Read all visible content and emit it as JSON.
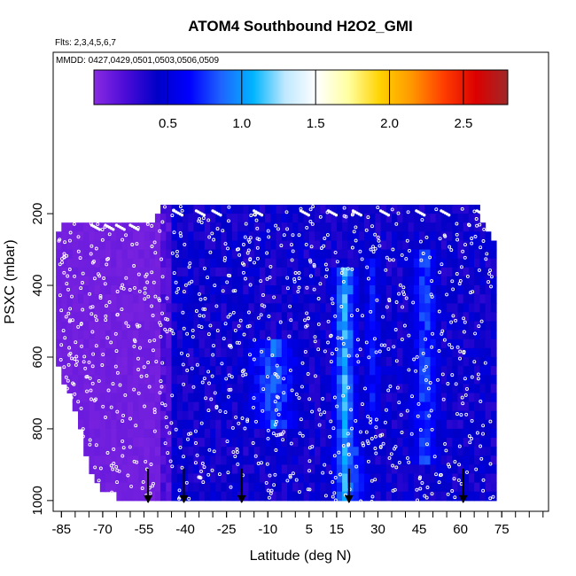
{
  "chart_data": {
    "type": "heatmap",
    "title": "ATOM4 Southbound H2O2_GMI",
    "subtitle_flights": "Flts: 2,3,4,5,6,7",
    "subtitle_dates": "MMDD: 0427,0429,0501,0503,0506,0509",
    "xlabel": "Latitude (deg N)",
    "ylabel": "PSXC (mbar)",
    "xlim": [
      -88,
      92
    ],
    "ylim": [
      1030,
      -250
    ],
    "x_ticks": [
      -85,
      -70,
      -55,
      -40,
      -25,
      -10,
      5,
      15,
      30,
      45,
      60,
      75
    ],
    "x_tick_labels": [
      "-85",
      "-70",
      "-55",
      "-40",
      "-25",
      "-10",
      "5",
      "15",
      "30",
      "45",
      "60",
      "75"
    ],
    "y_ticks": [
      200,
      400,
      600,
      800,
      1000
    ],
    "y_tick_labels": [
      "200",
      "400",
      "600",
      "800",
      "1000"
    ],
    "colorbar": {
      "min": 0,
      "max": 2.8,
      "ticks": [
        0.5,
        1.0,
        1.5,
        2.0,
        2.5
      ],
      "tick_labels": [
        "0.5",
        "1.0",
        "1.5",
        "2.0",
        "2.5"
      ],
      "colors": [
        "#8a2be2",
        "#4b0bd8",
        "#0000c8",
        "#0000ff",
        "#1e64ff",
        "#00b4ff",
        "#bfe8ff",
        "#ffffff",
        "#ffffa0",
        "#ffd200",
        "#ff9600",
        "#ff3c00",
        "#dc0000",
        "#a02828"
      ]
    },
    "column_envelope": [
      {
        "lat": -87,
        "top": 250,
        "bottom": 610
      },
      {
        "lat": -84,
        "top": 230,
        "bottom": 670
      },
      {
        "lat": -80,
        "top": 220,
        "bottom": 740
      },
      {
        "lat": -76,
        "top": 220,
        "bottom": 870
      },
      {
        "lat": -72,
        "top": 220,
        "bottom": 960
      },
      {
        "lat": -68,
        "top": 220,
        "bottom": 980
      },
      {
        "lat": -64,
        "top": 220,
        "bottom": 990
      },
      {
        "lat": -60,
        "top": 220,
        "bottom": 990
      },
      {
        "lat": -56,
        "top": 220,
        "bottom": 1000
      },
      {
        "lat": -52,
        "top": 220,
        "bottom": 1010
      },
      {
        "lat": -48,
        "top": 180,
        "bottom": 1010
      },
      {
        "lat": -40,
        "top": 180,
        "bottom": 1010
      },
      {
        "lat": 60,
        "top": 180,
        "bottom": 1010
      },
      {
        "lat": 66,
        "top": 180,
        "bottom": 1010
      },
      {
        "lat": 68,
        "top": 220,
        "bottom": 1010
      },
      {
        "lat": 71,
        "top": 260,
        "bottom": 1010
      },
      {
        "lat": 73,
        "top": 300,
        "bottom": 1010
      }
    ],
    "purple_zone_max_lat": -50,
    "high_value_bands": [
      {
        "lat_center": 18,
        "lat_width": 5,
        "value": 1.05,
        "p_from": 340,
        "p_to": 1010
      },
      {
        "lat_center": -8,
        "lat_width": 12,
        "value": 0.85,
        "p_from": 560,
        "p_to": 800
      },
      {
        "lat_center": 47,
        "lat_width": 7,
        "value": 0.8,
        "p_from": 300,
        "p_to": 900
      },
      {
        "lat_center": 21,
        "lat_width": 8,
        "value": 0.8,
        "p_from": 860,
        "p_to": 1010
      },
      {
        "lat_center": 28,
        "lat_width": 6,
        "value": 0.65,
        "p_from": 320,
        "p_to": 800
      }
    ],
    "flight_start_markers": [
      -53.5,
      -40.5,
      -19.5,
      19.5,
      61
    ]
  }
}
